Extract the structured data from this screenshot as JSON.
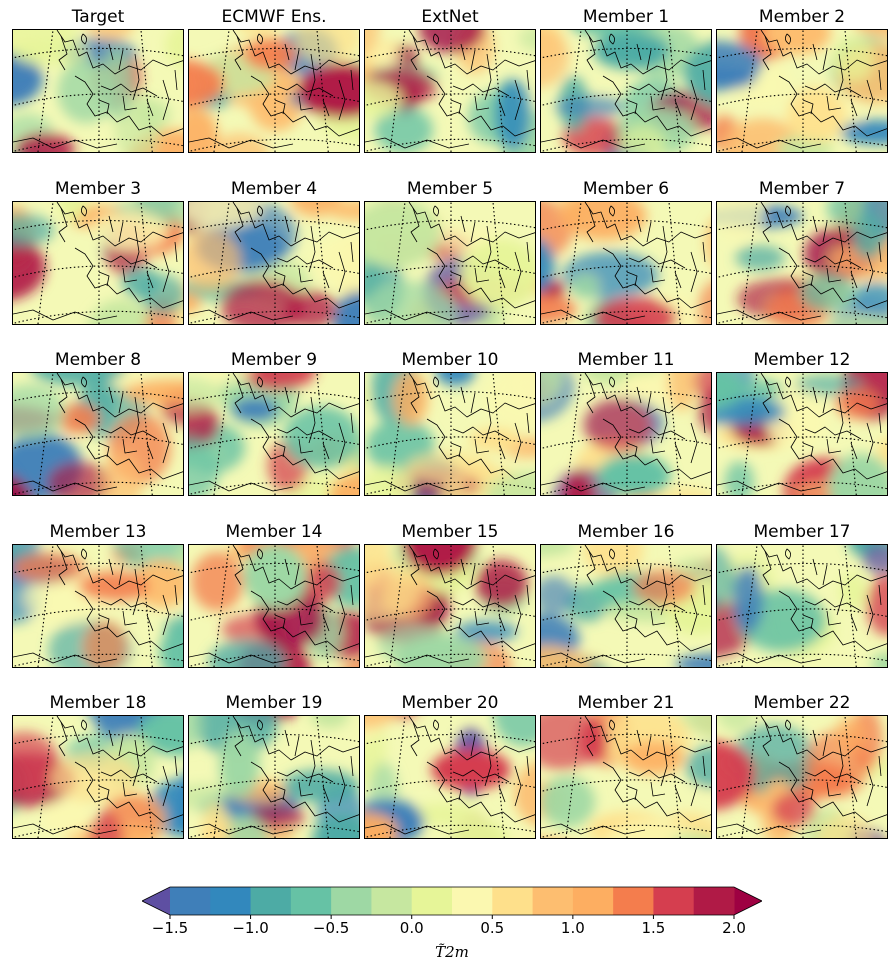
{
  "chart_data": {
    "type": "heatmap",
    "figure_kind": "small-multiple map grid (T2m anomaly over Europe)",
    "grid": {
      "rows": 5,
      "cols": 5
    },
    "panels": [
      {
        "title": "Target"
      },
      {
        "title": "ECMWF Ens."
      },
      {
        "title": "ExtNet"
      },
      {
        "title": "Member 1"
      },
      {
        "title": "Member 2"
      },
      {
        "title": "Member 3"
      },
      {
        "title": "Member 4"
      },
      {
        "title": "Member 5"
      },
      {
        "title": "Member 6"
      },
      {
        "title": "Member 7"
      },
      {
        "title": "Member 8"
      },
      {
        "title": "Member 9"
      },
      {
        "title": "Member 10"
      },
      {
        "title": "Member 11"
      },
      {
        "title": "Member 12"
      },
      {
        "title": "Member 13"
      },
      {
        "title": "Member 14"
      },
      {
        "title": "Member 15"
      },
      {
        "title": "Member 16"
      },
      {
        "title": "Member 17"
      },
      {
        "title": "Member 18"
      },
      {
        "title": "Member 19"
      },
      {
        "title": "Member 20"
      },
      {
        "title": "Member 21"
      },
      {
        "title": "Member 22"
      }
    ],
    "colorbar": {
      "label": "T̃2m",
      "range": [
        -1.5,
        2.0
      ],
      "extend": "both",
      "levels": [
        -1.5,
        -1.25,
        -1.0,
        -0.75,
        -0.5,
        -0.25,
        0.0,
        0.25,
        0.5,
        0.75,
        1.0,
        1.25,
        1.5,
        1.75,
        2.0
      ],
      "ticks": [
        -1.5,
        -1.0,
        -0.5,
        0.0,
        0.5,
        1.0,
        1.5,
        2.0
      ],
      "tick_labels": [
        "−1.5",
        "−1.0",
        "−0.5",
        "0.0",
        "0.5",
        "1.0",
        "1.5",
        "2.0"
      ],
      "colormap": "Spectral_r",
      "colors": [
        "#5e4fa2",
        "#3f7fb9",
        "#3288bd",
        "#4daba5",
        "#66c2a5",
        "#9ed8a4",
        "#c6e7a0",
        "#e6f598",
        "#fbf8b0",
        "#fee08b",
        "#fdbe70",
        "#fdae61",
        "#f47d4d",
        "#d53e4f",
        "#b01a46",
        "#9e0142"
      ]
    }
  }
}
